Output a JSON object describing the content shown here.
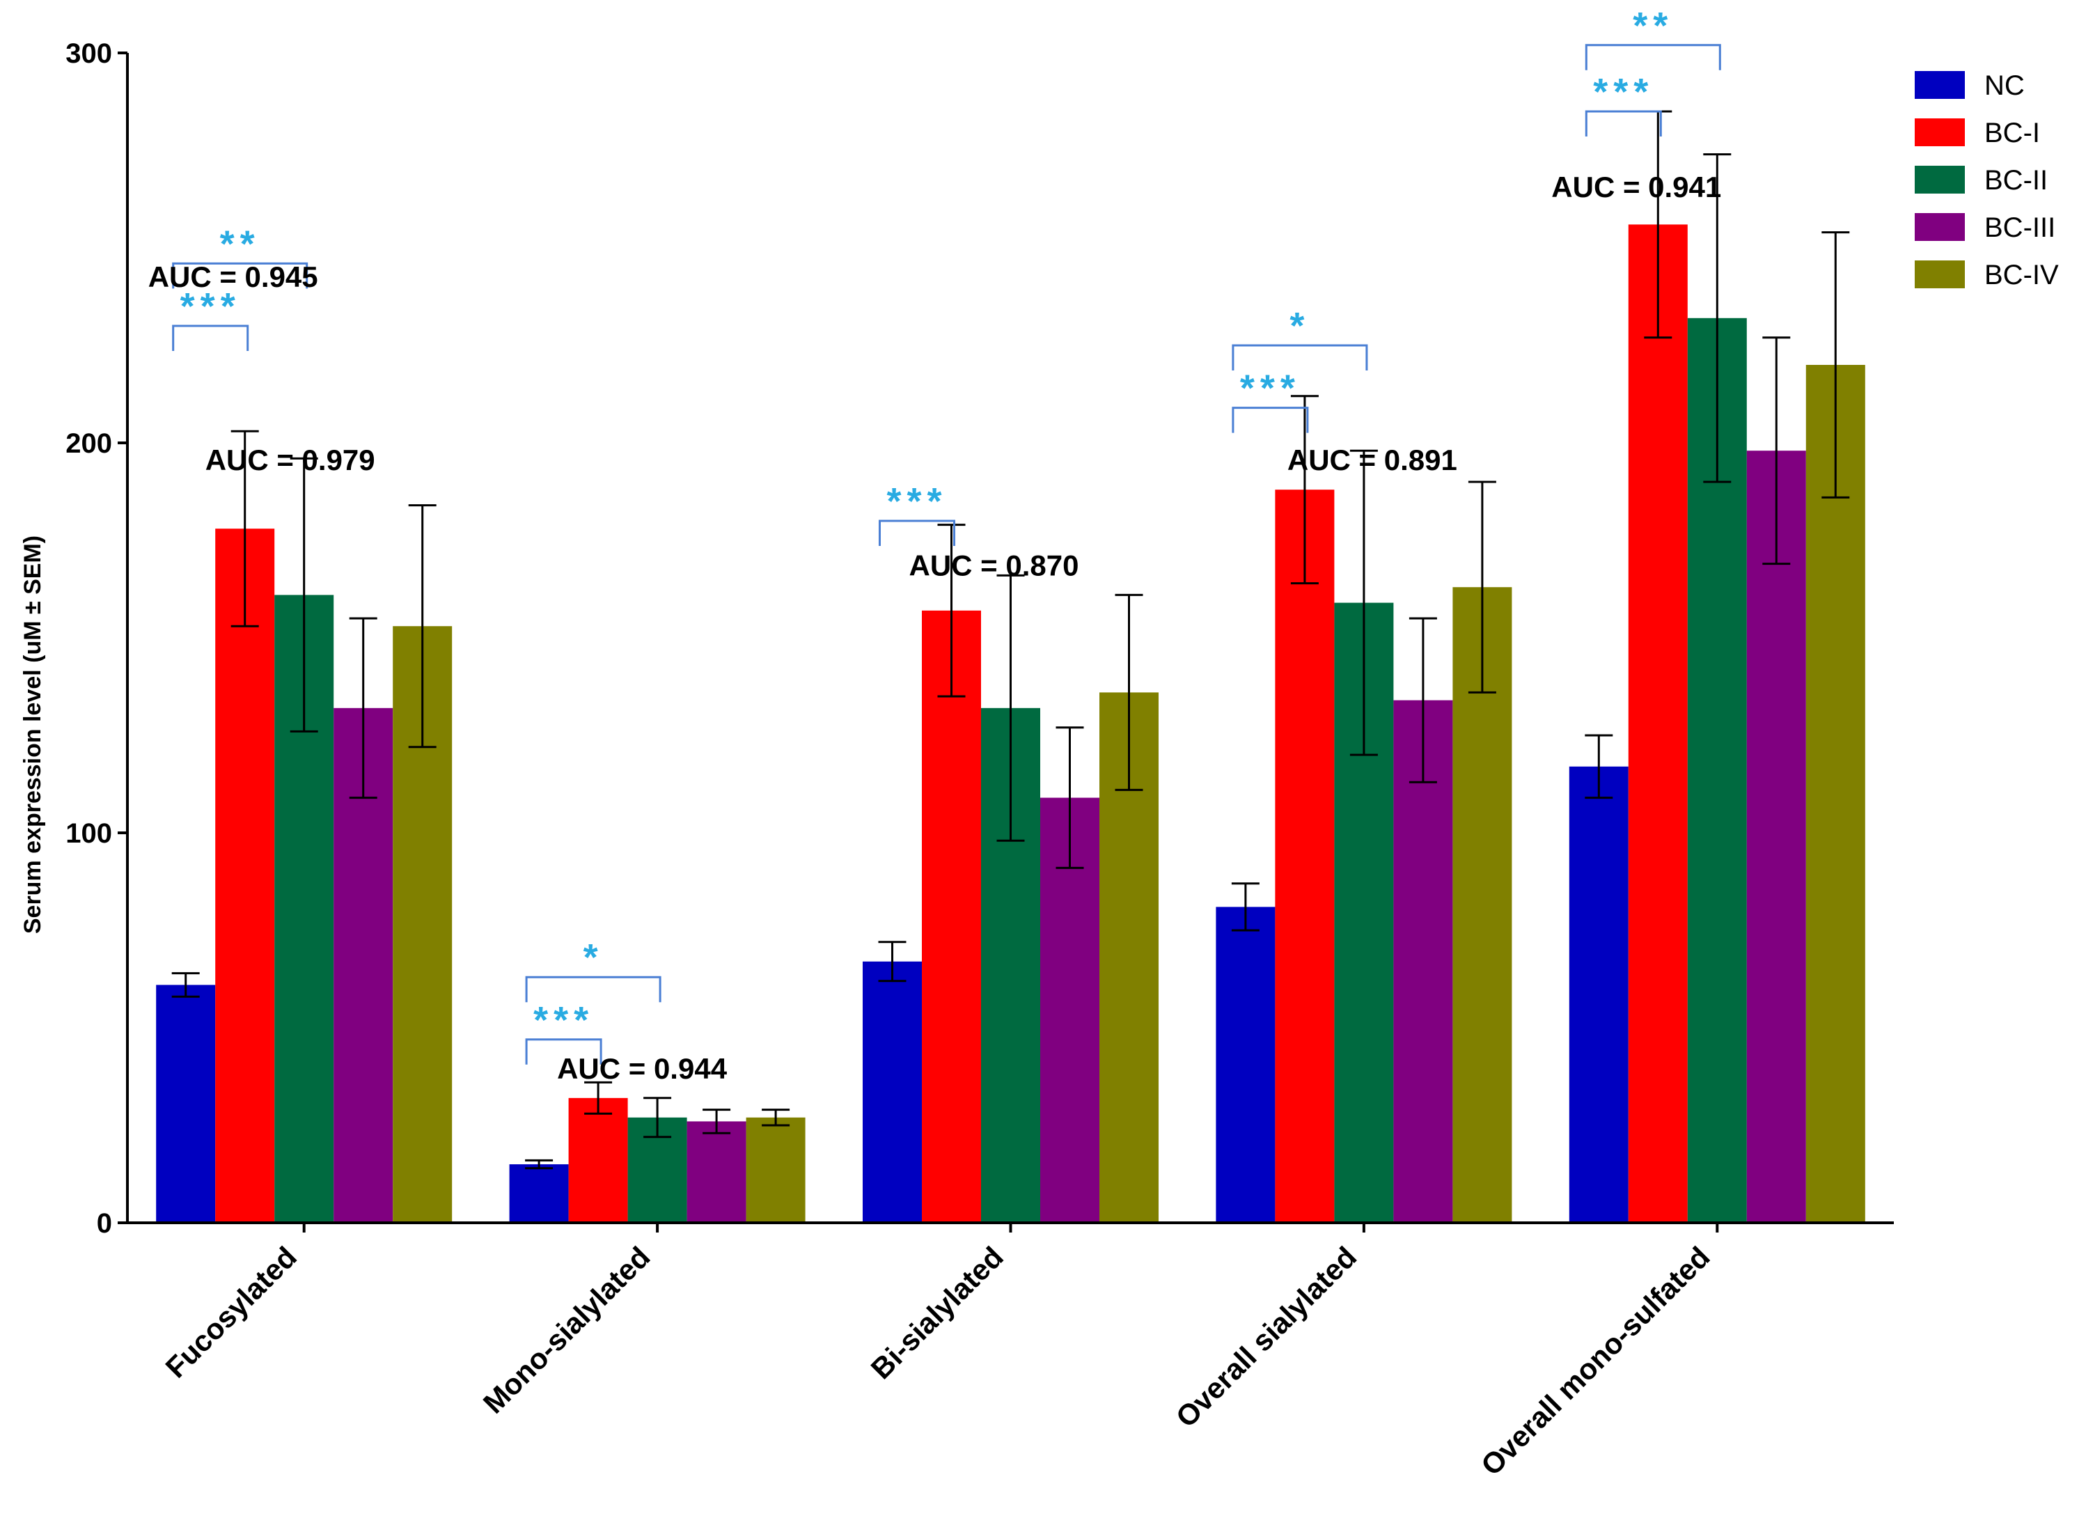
{
  "chart_data": {
    "type": "bar",
    "title": "",
    "xlabel": "",
    "ylabel": "Serum expression level (uM ± SEM)",
    "ylim": [
      0,
      300
    ],
    "yticks": [
      0,
      100,
      200,
      300
    ],
    "categories": [
      "Fucosylated",
      "Mono-sialylated",
      "Bi-sialylated",
      "Overall sialylated",
      "Overall mono-sulfated"
    ],
    "series": [
      {
        "name": "NC",
        "color": "#0000c0",
        "values": [
          61,
          15,
          67,
          81,
          117
        ],
        "errors": [
          3,
          1,
          5,
          6,
          8
        ]
      },
      {
        "name": "BC-I",
        "color": "#ff0000",
        "values": [
          178,
          32,
          157,
          188,
          256
        ],
        "errors": [
          25,
          4,
          22,
          24,
          29
        ]
      },
      {
        "name": "BC-II",
        "color": "#006a40",
        "values": [
          161,
          27,
          132,
          159,
          232
        ],
        "errors": [
          35,
          5,
          34,
          39,
          42
        ]
      },
      {
        "name": "BC-III",
        "color": "#800080",
        "values": [
          132,
          26,
          109,
          134,
          198
        ],
        "errors": [
          23,
          3,
          18,
          21,
          29
        ]
      },
      {
        "name": "BC-IV",
        "color": "#808000",
        "values": [
          153,
          27,
          136,
          163,
          220
        ],
        "errors": [
          31,
          2,
          25,
          27,
          34
        ]
      }
    ],
    "annotations": {
      "auc": [
        {
          "text": "AUC = 0.945",
          "category": 0
        },
        {
          "text": "AUC = 0.979",
          "category": 0
        },
        {
          "text": "AUC = 0.944",
          "category": 1
        },
        {
          "text": "AUC = 0.870",
          "category": 2
        },
        {
          "text": "AUC = 0.891",
          "category": 3
        },
        {
          "text": "AUC = 0.941",
          "category": 4
        }
      ],
      "significance": [
        {
          "text": "**",
          "category": 0,
          "from": "NC",
          "to": "BC-II",
          "level": 246
        },
        {
          "text": "***",
          "category": 0,
          "from": "NC",
          "to": "BC-I",
          "level": 230
        },
        {
          "text": "*",
          "category": 1,
          "from": "NC",
          "to": "BC-II",
          "level": 63
        },
        {
          "text": "***",
          "category": 1,
          "from": "NC",
          "to": "BC-I",
          "level": 47
        },
        {
          "text": "***",
          "category": 2,
          "from": "NC",
          "to": "BC-I",
          "level": 180
        },
        {
          "text": "*",
          "category": 3,
          "from": "NC",
          "to": "BC-II",
          "level": 225
        },
        {
          "text": "***",
          "category": 3,
          "from": "NC",
          "to": "BC-I",
          "level": 209
        },
        {
          "text": "**",
          "category": 4,
          "from": "NC",
          "to": "BC-II",
          "level": 302
        },
        {
          "text": "***",
          "category": 4,
          "from": "NC",
          "to": "BC-I",
          "level": 285
        }
      ]
    },
    "legend": "top-right",
    "colors": {
      "significance": "#29abe2",
      "bracket": "#4a7fd4"
    }
  }
}
